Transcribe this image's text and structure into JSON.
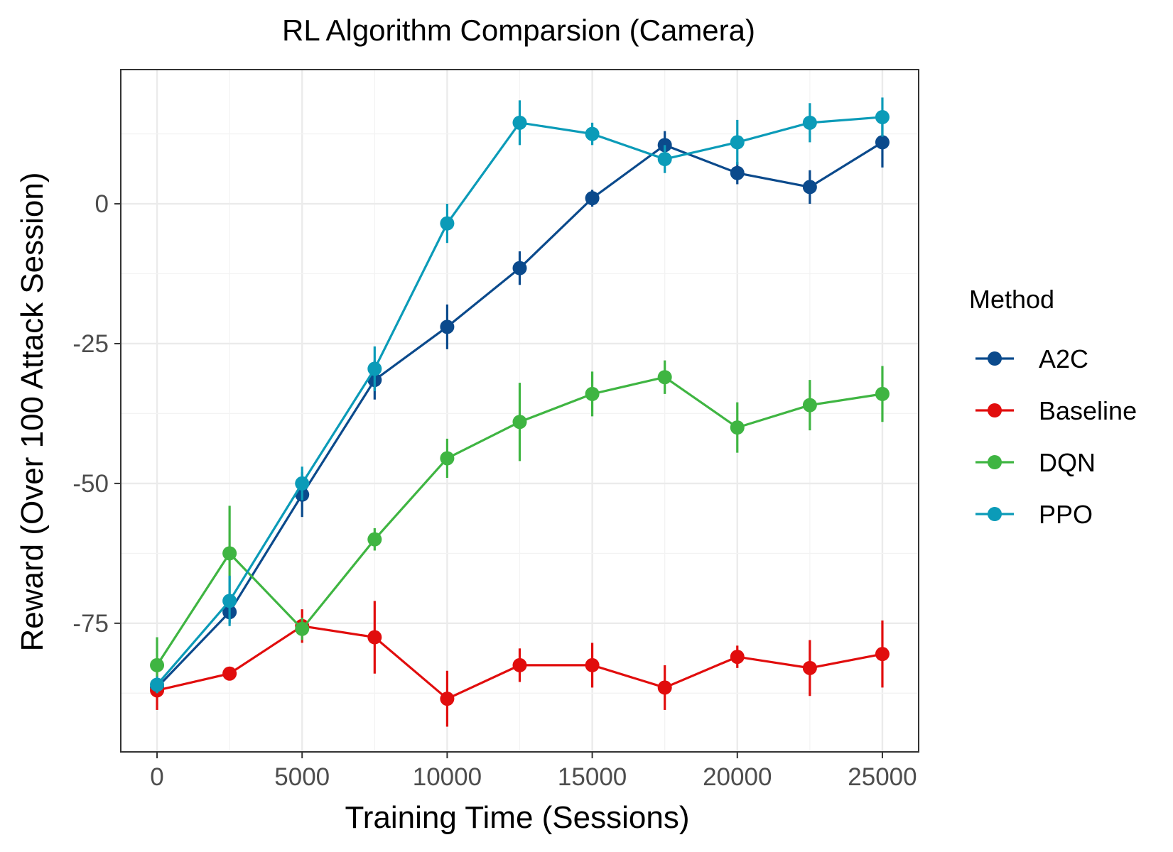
{
  "chart_data": {
    "type": "line",
    "title": "RL Algorithm Comparsion (Camera)",
    "xlabel": "Training Time (Sessions)",
    "ylabel": "Reward (Over 100 Attack Session)",
    "xlim": [
      -1250,
      26250
    ],
    "ylim": [
      -98,
      24
    ],
    "x_ticks": [
      0,
      5000,
      10000,
      15000,
      20000,
      25000
    ],
    "x_tick_labels": [
      "0",
      "5000",
      "10000",
      "15000",
      "20000",
      "25000"
    ],
    "y_ticks": [
      0,
      -25,
      -50,
      -75
    ],
    "y_tick_labels": [
      "0",
      "-25",
      "-50",
      "-75"
    ],
    "grid": true,
    "legend_title": "Method",
    "legend_position": "right",
    "x": [
      0,
      2500,
      5000,
      7500,
      10000,
      12500,
      15000,
      17500,
      20000,
      22500,
      25000
    ],
    "series": [
      {
        "name": "A2C",
        "color": "#0b4a8c",
        "values": [
          -86.5,
          -73,
          -52,
          -31.5,
          -22,
          -11.5,
          1,
          10.5,
          5.5,
          3,
          11
        ],
        "err": [
          1.5,
          2,
          4,
          3.5,
          4,
          3,
          1.5,
          2.5,
          2,
          3,
          4.5
        ]
      },
      {
        "name": "Baseline",
        "color": "#e10d0d",
        "values": [
          -87,
          -84,
          -75.5,
          -77.5,
          -88.5,
          -82.5,
          -82.5,
          -86.5,
          -81,
          -83,
          -80.5
        ],
        "err": [
          3.5,
          1,
          3,
          6.5,
          5,
          3,
          4,
          4,
          2,
          5,
          6
        ]
      },
      {
        "name": "DQN",
        "color": "#3fb542",
        "values": [
          -82.5,
          -62.5,
          -76,
          -60,
          -45.5,
          -39,
          -34,
          -31,
          -40,
          -36,
          -34
        ],
        "err": [
          5,
          8.5,
          2,
          2,
          3.5,
          7,
          4,
          3,
          4.5,
          4.5,
          5
        ]
      },
      {
        "name": "PPO",
        "color": "#0b9bb8",
        "values": [
          -86,
          -71,
          -50,
          -29.5,
          -3.5,
          14.5,
          12.5,
          8,
          11,
          14.5,
          15.5
        ],
        "err": [
          1.5,
          4.5,
          3,
          4,
          3.5,
          4,
          2,
          2.5,
          4,
          3.5,
          3.5
        ]
      }
    ]
  }
}
